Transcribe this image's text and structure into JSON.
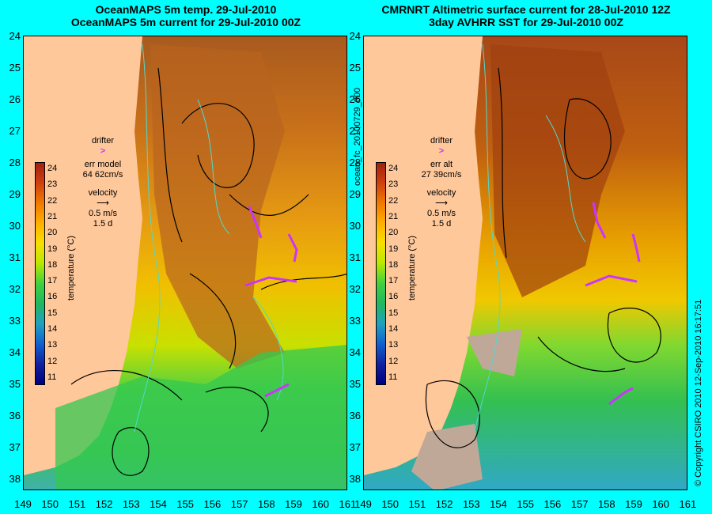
{
  "left_panel": {
    "title_line1": "OceanMAPS 5m temp. 29-Jul-2010",
    "title_line2": "OceanMAPS 5m current for 29-Jul-2010 00Z",
    "legend": {
      "drifter": "drifter",
      "err_label": "err model",
      "err_value": "64 62cm/s",
      "velocity": "velocity",
      "speed": "0.5 m/s",
      "duration": "1.5 d"
    }
  },
  "right_panel": {
    "title_line1": "CMRNRT Altimetric surface current for 28-Jul-2010 12Z",
    "title_line2": "3day AVHRR SST for 29-Jul-2010 00Z",
    "legend": {
      "drifter": "drifter",
      "err_label": "err alt",
      "err_value": "27 39cm/s",
      "velocity": "velocity",
      "speed": "0.5 m/s",
      "duration": "1.5 d"
    }
  },
  "colorbar": {
    "title": "temperature (°C)",
    "ticks": [
      "24",
      "23",
      "22",
      "21",
      "20",
      "19",
      "18",
      "17",
      "16",
      "15",
      "14",
      "13",
      "12",
      "11"
    ]
  },
  "axes": {
    "y_labels": [
      "24",
      "25",
      "26",
      "27",
      "28",
      "29",
      "30",
      "31",
      "32",
      "33",
      "34",
      "35",
      "36",
      "37",
      "38"
    ],
    "x_labels": [
      "149",
      "150",
      "151",
      "152",
      "153",
      "154",
      "155",
      "156",
      "157",
      "158",
      "159",
      "160",
      "161"
    ]
  },
  "side_label": "ocean_fc_20100729_000",
  "copyright": "© Copyright CSIRO 2010   12-Sep-2010 16:17:51",
  "colors": {
    "background": "#00ffff",
    "land": "#ffc89a",
    "drifter": "#cc33ff",
    "contour": "#4fd9d0"
  }
}
